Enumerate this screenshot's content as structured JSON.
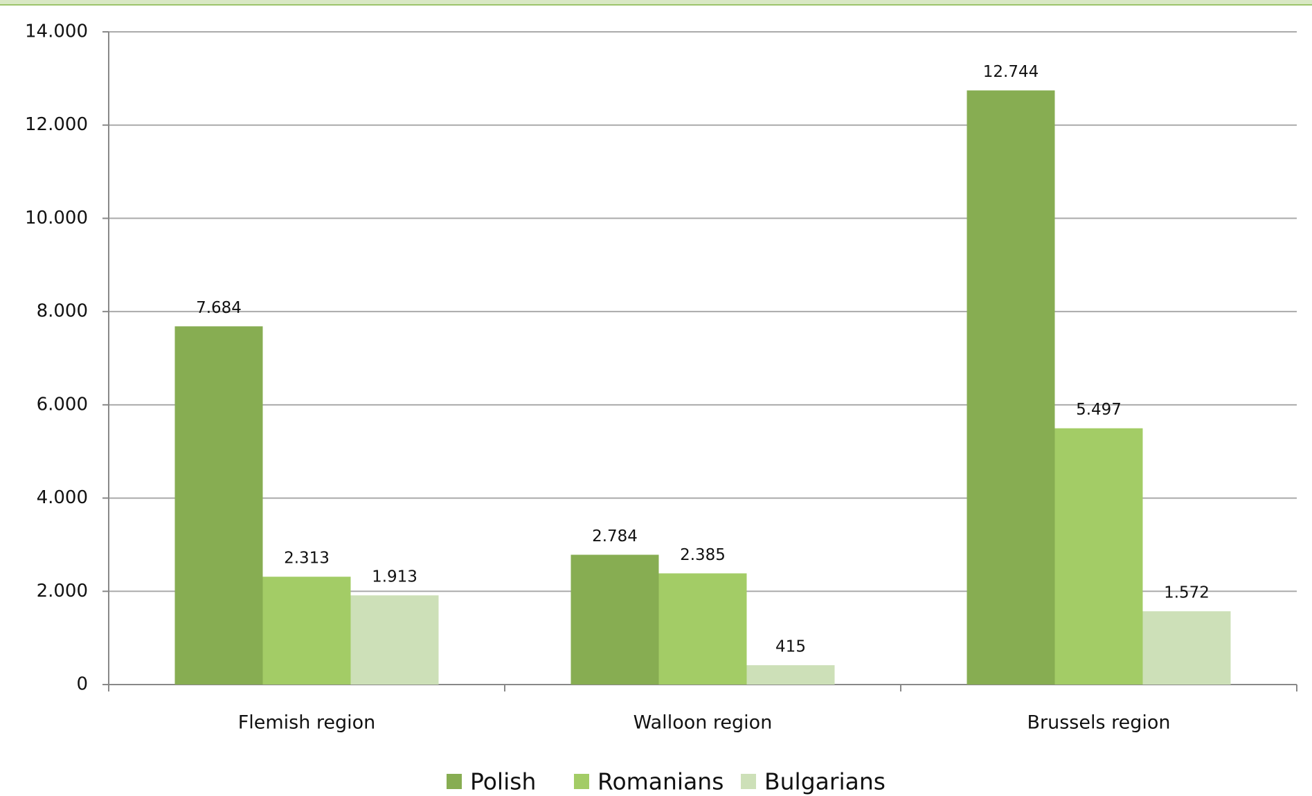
{
  "chart_data": {
    "type": "bar",
    "categories": [
      "Flemish region",
      "Walloon region",
      "Brussels region"
    ],
    "series": [
      {
        "name": "Polish",
        "color": "#87ad52",
        "values": [
          7684,
          2784,
          12744
        ],
        "value_labels": [
          "7.684",
          "2.784",
          "12.744"
        ]
      },
      {
        "name": "Romanians",
        "color": "#a3cc66",
        "values": [
          2313,
          2385,
          5497
        ],
        "value_labels": [
          "2.313",
          "2.385",
          "5.497"
        ]
      },
      {
        "name": "Bulgarians",
        "color": "#cde0b8",
        "values": [
          1913,
          415,
          1572
        ],
        "value_labels": [
          "1.913",
          "415",
          "1.572"
        ]
      }
    ],
    "ylim": [
      0,
      14000
    ],
    "yticks": [
      0,
      {
        "value": 2000,
        "label": "2.000"
      },
      {
        "value": 4000,
        "label": "4.000"
      },
      {
        "value": 6000,
        "label": "6.000"
      },
      {
        "value": 8000,
        "label": "8.000"
      },
      {
        "value": 10000,
        "label": "10.000"
      },
      {
        "value": 12000,
        "label": "12.000"
      },
      {
        "value": 14000,
        "label": "14.000"
      }
    ],
    "grid": true,
    "legend": "bottom"
  }
}
